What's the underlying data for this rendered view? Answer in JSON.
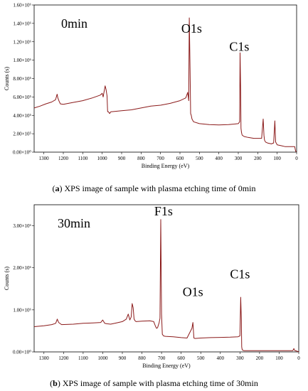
{
  "chart_data": [
    {
      "type": "line",
      "title": "0min",
      "xlabel": "Binding Energy (eV)",
      "ylabel": "Counts (s)",
      "xlim": [
        1350,
        0
      ],
      "ylim": [
        0,
        1600000
      ],
      "x_ticks": [
        1300,
        1200,
        1100,
        1000,
        900,
        800,
        700,
        600,
        500,
        400,
        300,
        200,
        100,
        0
      ],
      "y_ticks": [
        0,
        200000,
        400000,
        600000,
        800000,
        1000000,
        1200000,
        1400000,
        1600000
      ],
      "y_tick_labels": [
        "0.00×10⁰",
        "2.00×10⁵",
        "4.00×10⁵",
        "6.00×10⁵",
        "8.00×10⁵",
        "1.00×10⁶",
        "1.20×10⁶",
        "1.40×10⁶",
        "1.60×10⁶"
      ],
      "annotations": [
        {
          "text": "O1s",
          "x": 540,
          "y": 1300000
        },
        {
          "text": "C1s",
          "x": 295,
          "y": 1100000
        }
      ],
      "series": [
        {
          "color": "#8b1a1a",
          "x": [
            1350,
            1320,
            1290,
            1260,
            1240,
            1232,
            1228,
            1222,
            1215,
            1200,
            1150,
            1100,
            1050,
            1010,
            1000,
            995,
            990,
            985,
            980,
            975,
            972,
            968,
            962,
            955,
            950,
            900,
            850,
            800,
            750,
            700,
            650,
            600,
            570,
            560,
            555,
            552,
            548,
            545,
            542,
            538,
            530,
            500,
            450,
            400,
            350,
            320,
            300,
            293,
            291,
            288,
            286,
            284,
            282,
            280,
            270,
            250,
            220,
            200,
            180,
            172,
            168,
            165,
            160,
            150,
            130,
            118,
            112,
            108,
            100,
            80,
            60,
            40,
            20,
            10,
            5,
            0
          ],
          "y": [
            480000,
            500000,
            525000,
            545000,
            570000,
            630000,
            590000,
            555000,
            525000,
            520000,
            540000,
            560000,
            590000,
            620000,
            640000,
            600000,
            660000,
            720000,
            680000,
            610000,
            440000,
            440000,
            420000,
            440000,
            440000,
            450000,
            460000,
            480000,
            500000,
            510000,
            530000,
            560000,
            590000,
            650000,
            560000,
            1460000,
            900000,
            420000,
            400000,
            360000,
            330000,
            310000,
            300000,
            295000,
            300000,
            305000,
            310000,
            330000,
            1080000,
            680000,
            260000,
            220000,
            200000,
            185000,
            170000,
            160000,
            150000,
            150000,
            150000,
            360000,
            180000,
            130000,
            110000,
            100000,
            90000,
            100000,
            340000,
            110000,
            80000,
            70000,
            60000,
            60000,
            60000,
            60000,
            10000,
            5000
          ]
        }
      ]
    },
    {
      "type": "line",
      "title": "30min",
      "xlabel": "Binding Energy (eV)",
      "ylabel": "Counts (s)",
      "xlim": [
        1350,
        0
      ],
      "ylim": [
        0,
        3500000
      ],
      "x_ticks": [
        1300,
        1200,
        1100,
        1000,
        900,
        800,
        700,
        600,
        500,
        400,
        300,
        200,
        100,
        0
      ],
      "y_ticks": [
        0,
        1000000,
        2000000,
        3000000
      ],
      "y_tick_labels": [
        "0.00×10⁰",
        "1.00×10⁶",
        "2.00×10⁶",
        "3.00×10⁶"
      ],
      "annotations": [
        {
          "text": "F1s",
          "x": 690,
          "y": 3250000
        },
        {
          "text": "O1s",
          "x": 540,
          "y": 1330000
        },
        {
          "text": "C1s",
          "x": 300,
          "y": 1750000
        }
      ],
      "series": [
        {
          "color": "#8b1a1a",
          "x": [
            1350,
            1300,
            1260,
            1240,
            1232,
            1225,
            1210,
            1150,
            1100,
            1050,
            1010,
            1000,
            990,
            980,
            960,
            930,
            900,
            880,
            870,
            862,
            855,
            850,
            845,
            840,
            835,
            830,
            800,
            760,
            740,
            730,
            725,
            720,
            712,
            708,
            704,
            700,
            696,
            690,
            680,
            640,
            600,
            570,
            545,
            540,
            535,
            530,
            500,
            450,
            400,
            350,
            310,
            300,
            296,
            293,
            291,
            289,
            286,
            280,
            260,
            240,
            220,
            200,
            100,
            30,
            25,
            20,
            10,
            5,
            0
          ],
          "y": [
            600000,
            620000,
            650000,
            680000,
            780000,
            700000,
            650000,
            660000,
            680000,
            690000,
            700000,
            760000,
            680000,
            670000,
            660000,
            690000,
            720000,
            780000,
            900000,
            760000,
            830000,
            1150000,
            1050000,
            780000,
            740000,
            720000,
            730000,
            740000,
            720000,
            600000,
            560000,
            580000,
            700000,
            800000,
            3150000,
            900000,
            420000,
            380000,
            370000,
            360000,
            340000,
            330000,
            560000,
            700000,
            330000,
            320000,
            330000,
            340000,
            345000,
            350000,
            360000,
            380000,
            1300000,
            750000,
            120000,
            60000,
            40000,
            30000,
            30000,
            30000,
            30000,
            30000,
            30000,
            30000,
            80000,
            30000,
            20000,
            10000,
            5000
          ]
        }
      ]
    }
  ],
  "captions": {
    "a_label": "a",
    "a_text": " XPS image of sample with plasma etching time of 0min",
    "b_label": "b",
    "b_text": " XPS image of sample with plasma etching time of 30min"
  },
  "colors": {
    "series": "#8b1a1a",
    "axis": "#000000",
    "background": "#ffffff"
  }
}
